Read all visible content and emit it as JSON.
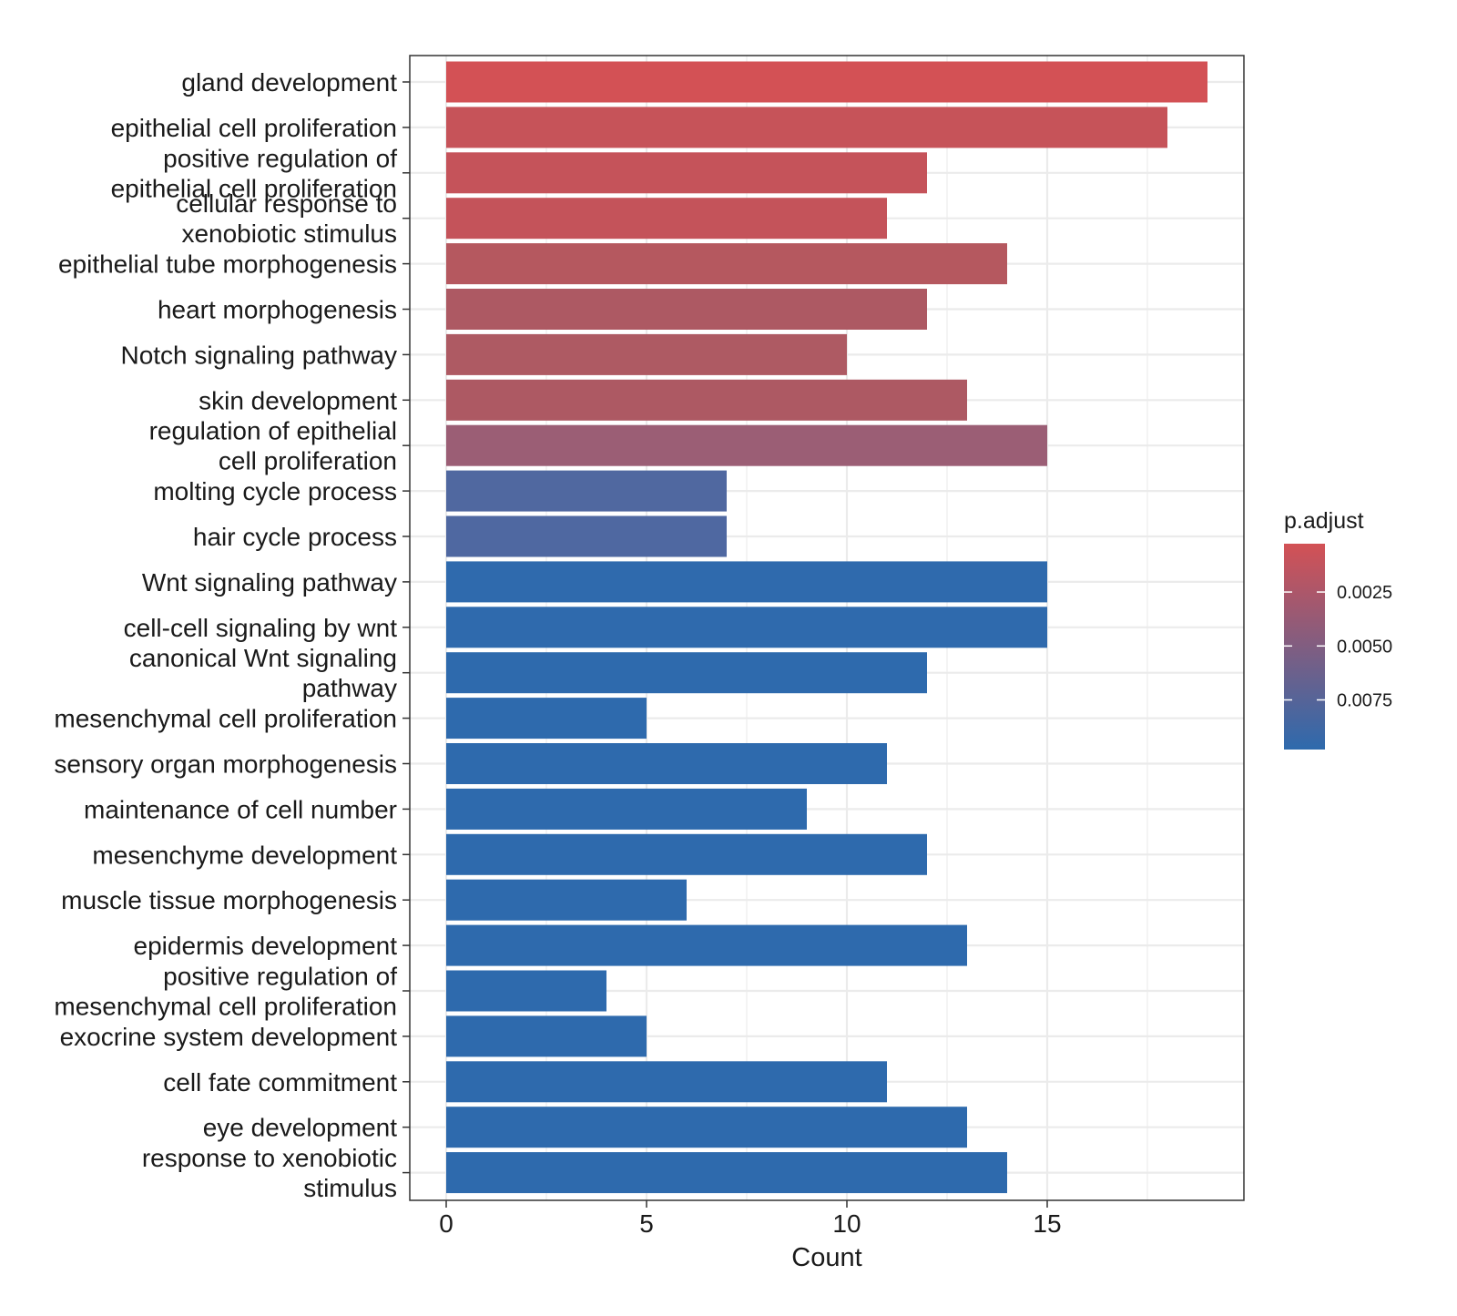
{
  "chart_data": {
    "type": "bar",
    "orientation": "horizontal",
    "xlabel": "Count",
    "ylabel": "",
    "xlim": [
      0,
      19.9
    ],
    "xticks": [
      0,
      5,
      10,
      15
    ],
    "grid": true,
    "legend_position": "right",
    "categories": [
      "gland development",
      "epithelial cell proliferation",
      "positive regulation of\nepithelial cell proliferation",
      "cellular response to\nxenobiotic stimulus",
      "epithelial tube morphogenesis",
      "heart morphogenesis",
      "Notch signaling pathway",
      "skin development",
      "regulation of epithelial\ncell proliferation",
      "molting cycle process",
      "hair cycle process",
      "Wnt signaling pathway",
      "cell-cell signaling by wnt",
      "canonical Wnt signaling\npathway",
      "mesenchymal cell proliferation",
      "sensory organ morphogenesis",
      "maintenance of cell number",
      "mesenchyme development",
      "muscle tissue morphogenesis",
      "epidermis development",
      "positive regulation of\nmesenchymal cell proliferation",
      "exocrine system development",
      "cell fate commitment",
      "eye development",
      "response to xenobiotic\nstimulus"
    ],
    "values": [
      19,
      18,
      12,
      11,
      14,
      12,
      10,
      13,
      15,
      7,
      7,
      15,
      15,
      12,
      5,
      11,
      9,
      12,
      6,
      13,
      4,
      5,
      11,
      13,
      14
    ],
    "bar_colors": [
      "#d35155",
      "#c65359",
      "#c5535a",
      "#c4535a",
      "#b5585f",
      "#ad5963",
      "#ae5a63",
      "#ad5963",
      "#9b5e75",
      "#5068a0",
      "#4f68a1",
      "#2f6aad",
      "#2f6aad",
      "#2e6aad",
      "#2e6aad",
      "#2e6aad",
      "#2e6aad",
      "#2e6aad",
      "#2e6aad",
      "#2e6aad",
      "#2e6aad",
      "#2e6aad",
      "#2e6aad",
      "#2e6aad",
      "#2e6aad"
    ],
    "legend": {
      "title": "p.adjust",
      "tick_labels": [
        "0.0025",
        "0.0050",
        "0.0075"
      ],
      "tick_values": [
        0.0025,
        0.005,
        0.0075
      ],
      "range": [
        0.00026,
        0.0098
      ],
      "color_low": "#d35155",
      "color_high": "#2e6aad"
    }
  }
}
